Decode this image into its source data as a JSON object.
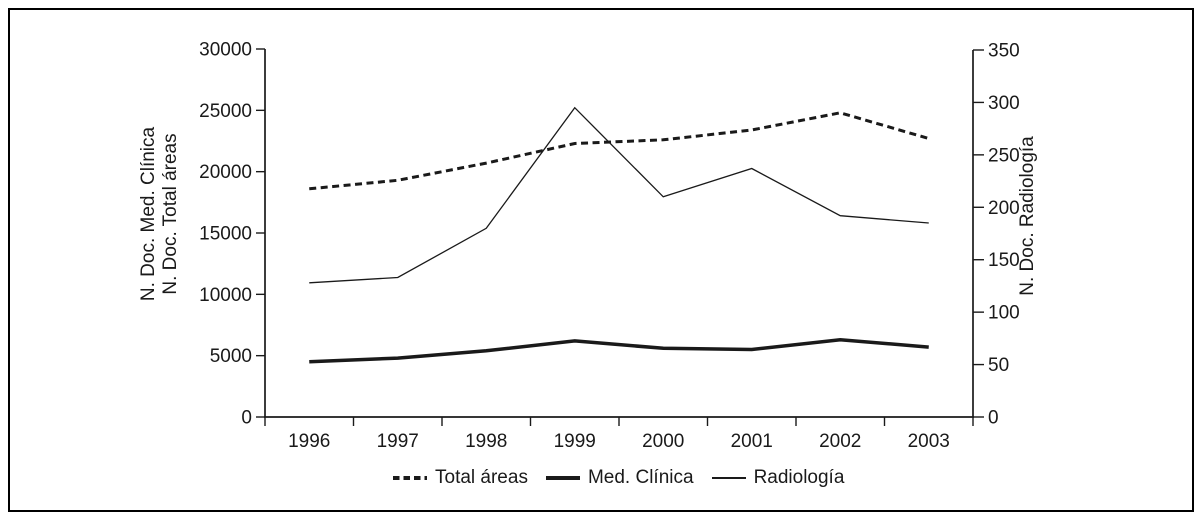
{
  "chart_data": {
    "type": "line",
    "title": "",
    "categories": [
      "1996",
      "1997",
      "1998",
      "1999",
      "2000",
      "2001",
      "2002",
      "2003"
    ],
    "left_axis": {
      "title_line1": "N. Doc. Med. Clínica",
      "title_line2": "N. Doc. Total áreas",
      "min": 0,
      "max": 30000,
      "tick_step": 5000,
      "ticks": [
        0,
        5000,
        10000,
        15000,
        20000,
        25000,
        30000
      ]
    },
    "right_axis": {
      "title": "N. Doc. Radiología",
      "min": 0,
      "max": 350,
      "tick_step": 50,
      "ticks": [
        0,
        50,
        100,
        150,
        200,
        250,
        300,
        350
      ]
    },
    "series": [
      {
        "name": "Total áreas",
        "axis": "left",
        "line_style": "dashed",
        "stroke_width": 3,
        "values": [
          18600,
          19300,
          20700,
          22300,
          22600,
          23400,
          24800,
          22700
        ]
      },
      {
        "name": "Med. Clínica",
        "axis": "left",
        "line_style": "solid-thick",
        "stroke_width": 3.5,
        "values": [
          4500,
          4800,
          5400,
          6200,
          5600,
          5500,
          6300,
          5700
        ]
      },
      {
        "name": "Radiología",
        "axis": "right",
        "line_style": "solid-thin",
        "stroke_width": 1.3,
        "values": [
          128,
          133,
          180,
          295,
          210,
          237,
          192,
          185
        ]
      }
    ],
    "legend": {
      "position": "bottom-center",
      "items": [
        "Total áreas",
        "Med. Clínica",
        "Radiología"
      ]
    },
    "colors": {
      "line": "#1a1a1a",
      "text": "#1a1a1a",
      "background": "#ffffff",
      "border": "#000000"
    },
    "grid": false
  }
}
